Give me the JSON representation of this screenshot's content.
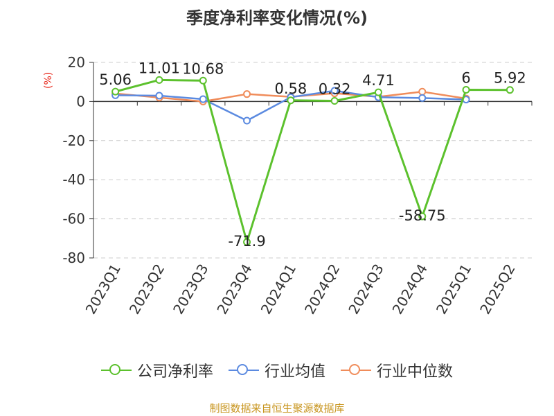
{
  "title": "季度净利率变化情况(%)",
  "unit_label": "(%)",
  "source_text": "制图数据来自恒生聚源数据库",
  "colors": {
    "company": "#5cc12d",
    "industry_avg": "#5b8ae0",
    "industry_median": "#f08c5a",
    "grid": "#cccccc",
    "axis": "#333333"
  },
  "chart_data": {
    "type": "line",
    "title": "季度净利率变化情况(%)",
    "ylabel": "(%)",
    "ylim": [
      -80,
      20
    ],
    "yticks": [
      20,
      0,
      -20,
      -40,
      -60,
      -80
    ],
    "grid": true,
    "legend_position": "bottom",
    "categories": [
      "2023Q1",
      "2023Q2",
      "2023Q3",
      "2023Q4",
      "2024Q1",
      "2024Q2",
      "2024Q3",
      "2024Q4",
      "2025Q1",
      "2025Q2"
    ],
    "series": [
      {
        "name": "公司净利率",
        "color": "#5cc12d",
        "values": [
          5.06,
          11.01,
          10.68,
          -71.9,
          0.58,
          0.32,
          4.71,
          -58.75,
          6,
          5.92
        ],
        "labels": [
          "5.06",
          "11.01",
          "10.68",
          "-71.9",
          "0.58",
          "0.32",
          "4.71",
          "-58.75",
          "6",
          "5.92"
        ]
      },
      {
        "name": "行业均值",
        "color": "#5b8ae0",
        "values": [
          3.2,
          3.0,
          1.2,
          -9.8,
          2.2,
          5.5,
          2.2,
          1.8,
          1.0,
          null
        ]
      },
      {
        "name": "行业中位数",
        "color": "#f08c5a",
        "values": [
          4.1,
          2.0,
          0.0,
          3.8,
          2.4,
          4.2,
          2.4,
          5.0,
          1.5,
          null
        ]
      }
    ]
  }
}
